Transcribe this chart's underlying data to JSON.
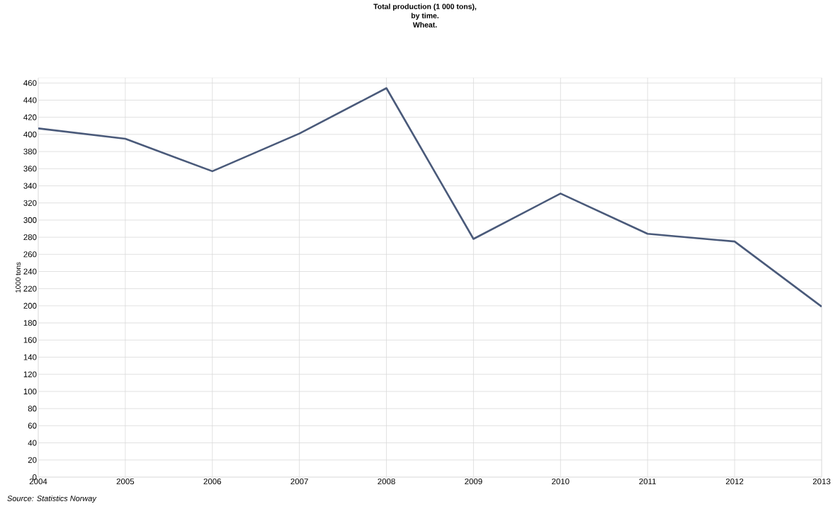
{
  "chart_data": {
    "type": "line",
    "title": "Total production (1 000 tons),\nby time.\nWheat.",
    "ylabel": "1000 tons",
    "x": [
      2004,
      2005,
      2006,
      2007,
      2008,
      2009,
      2010,
      2011,
      2012,
      2013
    ],
    "series": [
      {
        "color": "#4a5a7a",
        "values": [
          407,
          395,
          357,
          401,
          454,
          278,
          331,
          284,
          275,
          199
        ]
      }
    ],
    "xlim": [
      2004,
      2013
    ],
    "xticks": [
      2004,
      2005,
      2006,
      2007,
      2008,
      2009,
      2010,
      2011,
      2012,
      2013
    ],
    "ylim": [
      0,
      466
    ],
    "yticks": [
      0,
      20,
      40,
      60,
      80,
      100,
      120,
      140,
      160,
      180,
      200,
      220,
      240,
      260,
      280,
      300,
      320,
      340,
      360,
      380,
      400,
      420,
      440,
      460
    ],
    "grid": true,
    "marker": "none",
    "line_style": "solid",
    "annotations": [
      "Source: Statistics Norway"
    ]
  }
}
